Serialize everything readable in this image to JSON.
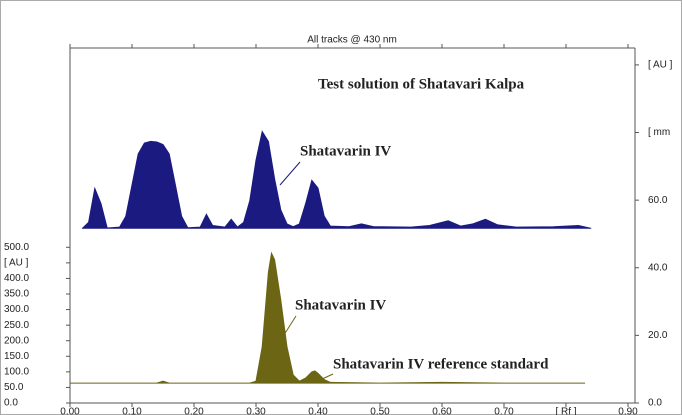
{
  "chart_data": {
    "type": "area",
    "title": "All tracks @ 430 nm",
    "annotations": [
      "Test solution of Shatavari Kalpa",
      "Shatavarin IV",
      "Shatavarin IV",
      "Shatavarin IV reference standard"
    ],
    "xlim": [
      0,
      0.9
    ],
    "xticks": [
      {
        "value": 0,
        "label": "0.00"
      },
      {
        "value": 0.1,
        "label": "0.10"
      },
      {
        "value": 0.2,
        "label": "0.20"
      },
      {
        "value": 0.3,
        "label": "0.30"
      },
      {
        "value": 0.4,
        "label": "0.40"
      },
      {
        "value": 0.5,
        "label": "0.50"
      },
      {
        "value": 0.6,
        "label": "0.60"
      },
      {
        "value": 0.7,
        "label": "0.70"
      },
      {
        "value": 0.8,
        "label": "[ Rf ]"
      },
      {
        "value": 0.9,
        "label": "0.90"
      }
    ],
    "ylim": [
      0,
      1140
    ],
    "yticks": [
      {
        "value": 0,
        "label": "0.0"
      },
      {
        "value": 50,
        "label": "50.0"
      },
      {
        "value": 100,
        "label": "100.0"
      },
      {
        "value": 150,
        "label": "150.0"
      },
      {
        "value": 200,
        "label": "200.0"
      },
      {
        "value": 250,
        "label": "250.0"
      },
      {
        "value": 300,
        "label": "300.0"
      },
      {
        "value": 350,
        "label": "350.0"
      },
      {
        "value": 400,
        "label": "400.0"
      },
      {
        "value": 450,
        "label": "[ AU ]"
      },
      {
        "value": 500,
        "label": "500.0"
      }
    ],
    "y2lim": [
      0,
      105
    ],
    "y2ticks": [
      {
        "value": 0,
        "label": "0.0"
      },
      {
        "value": 20,
        "label": "20.0"
      },
      {
        "value": 40,
        "label": "40.0"
      },
      {
        "value": 60,
        "label": "60.0"
      },
      {
        "value": 80,
        "label": "[ mm"
      },
      {
        "value": 100,
        "label": "[ AU ]"
      }
    ],
    "series": [
      {
        "color": "#1a1a80",
        "x": [
          0.02,
          0.03,
          0.04,
          0.05,
          0.06,
          0.08,
          0.09,
          0.1,
          0.11,
          0.12,
          0.13,
          0.14,
          0.15,
          0.16,
          0.17,
          0.18,
          0.19,
          0.21,
          0.22,
          0.23,
          0.25,
          0.26,
          0.27,
          0.28,
          0.29,
          0.3,
          0.31,
          0.32,
          0.33,
          0.34,
          0.35,
          0.36,
          0.37,
          0.38,
          0.39,
          0.4,
          0.41,
          0.42,
          0.45,
          0.47,
          0.49,
          0.55,
          0.58,
          0.61,
          0.63,
          0.65,
          0.67,
          0.69,
          0.72,
          0.78,
          0.82,
          0.84
        ],
        "values": [
          561,
          580,
          689,
          640,
          562,
          565,
          600,
          700,
          800,
          835,
          840,
          838,
          830,
          800,
          700,
          600,
          563,
          565,
          606,
          570,
          565,
          590,
          565,
          580,
          650,
          780,
          872,
          840,
          720,
          620,
          575,
          566,
          575,
          640,
          715,
          690,
          600,
          568,
          566,
          575,
          566,
          565,
          570,
          585,
          568,
          575,
          590,
          572,
          565,
          566,
          570,
          561
        ]
      },
      {
        "color": "#6b6514",
        "x": [
          0.0,
          0.14,
          0.15,
          0.16,
          0.29,
          0.3,
          0.31,
          0.32,
          0.325,
          0.33,
          0.34,
          0.35,
          0.36,
          0.37,
          0.38,
          0.39,
          0.395,
          0.4,
          0.41,
          0.42,
          0.5,
          0.6,
          0.7,
          0.83
        ],
        "values": [
          64,
          64,
          70,
          64,
          64,
          70,
          180,
          420,
          481,
          460,
          330,
          180,
          90,
          70,
          80,
          100,
          103,
          95,
          75,
          66,
          64,
          66,
          64,
          64
        ]
      }
    ]
  }
}
